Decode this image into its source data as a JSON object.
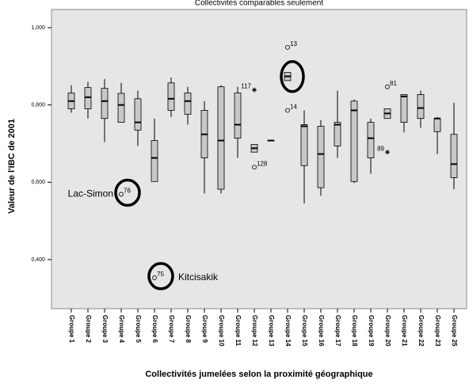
{
  "chart_data": {
    "type": "box",
    "title": "Collectivités comparables seulement",
    "x_label": "Collectivités jumelées selon la proximité géographique",
    "y_label": "Valeur de l'IBC de 2001",
    "categories": [
      "Groupe 1",
      "Groupe 2",
      "Groupe 3",
      "Groupe 4",
      "Groupe 5",
      "Groupe 6",
      "Groupe 7",
      "Groupe 8",
      "Groupe 9",
      "Groupe 10",
      "Groupe 11",
      "Groupe 12",
      "Groupe 13",
      "Groupe 14",
      "Groupe 15",
      "Groupe 16",
      "Groupe 17",
      "Groupe 18",
      "Groupe 19",
      "Groupe 20",
      "Groupe 21",
      "Groupe 22",
      "Groupe 23",
      "Groupe 25"
    ],
    "min": [
      0.78,
      0.765,
      0.704,
      0.755,
      0.694,
      0.602,
      0.769,
      0.749,
      0.571,
      0.571,
      0.663,
      0.678,
      0.708,
      0.863,
      0.545,
      0.565,
      0.663,
      0.598,
      0.622,
      0.765,
      0.729,
      0.741,
      0.673,
      0.582
    ],
    "q1": [
      0.79,
      0.79,
      0.765,
      0.755,
      0.735,
      0.602,
      0.786,
      0.776,
      0.663,
      0.582,
      0.714,
      0.678,
      0.708,
      0.863,
      0.643,
      0.586,
      0.694,
      0.602,
      0.663,
      0.765,
      0.755,
      0.765,
      0.731,
      0.612
    ],
    "median": [
      0.81,
      0.82,
      0.81,
      0.8,
      0.755,
      0.663,
      0.816,
      0.81,
      0.724,
      0.708,
      0.749,
      0.688,
      0.708,
      0.874,
      0.745,
      0.673,
      0.749,
      0.786,
      0.714,
      0.778,
      0.822,
      0.792,
      0.765,
      0.647
    ],
    "q3": [
      0.831,
      0.845,
      0.843,
      0.83,
      0.816,
      0.708,
      0.857,
      0.831,
      0.786,
      0.847,
      0.831,
      0.698,
      0.708,
      0.884,
      0.749,
      0.745,
      0.755,
      0.81,
      0.755,
      0.79,
      0.827,
      0.827,
      0.765,
      0.724
    ],
    "max": [
      0.851,
      0.86,
      0.867,
      0.857,
      0.837,
      0.765,
      0.871,
      0.847,
      0.81,
      0.851,
      0.847,
      0.698,
      0.708,
      0.884,
      0.786,
      0.761,
      0.837,
      0.814,
      0.765,
      0.79,
      0.827,
      0.837,
      0.769,
      0.806
    ],
    "outliers": [
      {
        "group": "Groupe 4",
        "value": 0.569,
        "label": "76",
        "marker": "circle",
        "annotation": "Lac-Simon",
        "annotation_position": "left"
      },
      {
        "group": "Groupe 6",
        "value": 0.353,
        "label": "75",
        "marker": "circle",
        "annotation": "Kitcisakik",
        "annotation_position": "right"
      },
      {
        "group": "Groupe 12",
        "value": 0.839,
        "label": "117",
        "marker": "star"
      },
      {
        "group": "Groupe 12",
        "value": 0.639,
        "label": "128",
        "marker": "circle"
      },
      {
        "group": "Groupe 14",
        "value": 0.949,
        "label": "13",
        "marker": "circle"
      },
      {
        "group": "Groupe 14",
        "value": 0.786,
        "label": "14",
        "marker": "circle"
      },
      {
        "group": "Groupe 20",
        "value": 0.847,
        "label": "81",
        "marker": "circle"
      },
      {
        "group": "Groupe 20",
        "value": 0.678,
        "label": "89",
        "marker": "star"
      }
    ],
    "highlighted": "Groupe 14",
    "box_color": "#c8c8c8",
    "ylim": [
      0.273,
      1.047
    ],
    "yticks": [
      {
        "value": 0.4,
        "label": "0,400"
      },
      {
        "value": 0.6,
        "label": "0,600"
      },
      {
        "value": 0.8,
        "label": "0,800"
      },
      {
        "value": 1.0,
        "label": "1,000"
      }
    ]
  }
}
